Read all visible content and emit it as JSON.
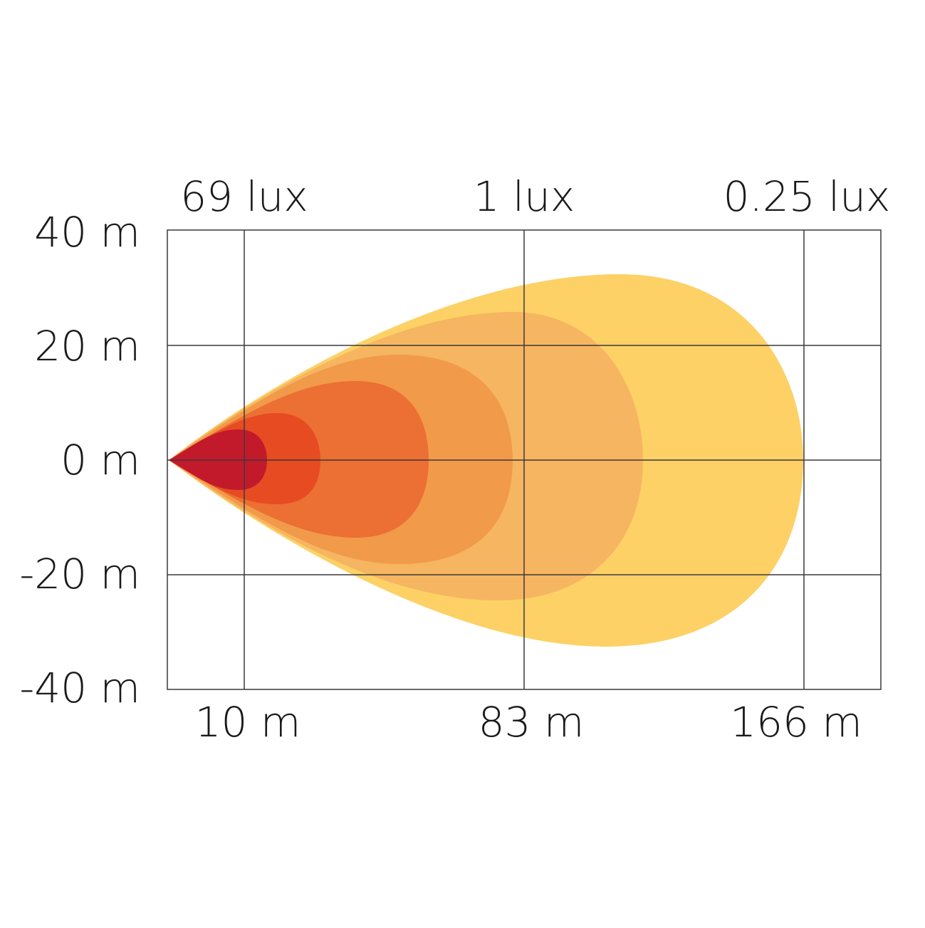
{
  "y_labels": [
    "40 m",
    "20 m",
    "0 m",
    "-20 m",
    "-40 m"
  ],
  "x_labels": [
    "10 m",
    "83 m",
    "166 m"
  ],
  "lux_labels": [
    "69 lux",
    "1 lux",
    "0.25 lux"
  ]
}
